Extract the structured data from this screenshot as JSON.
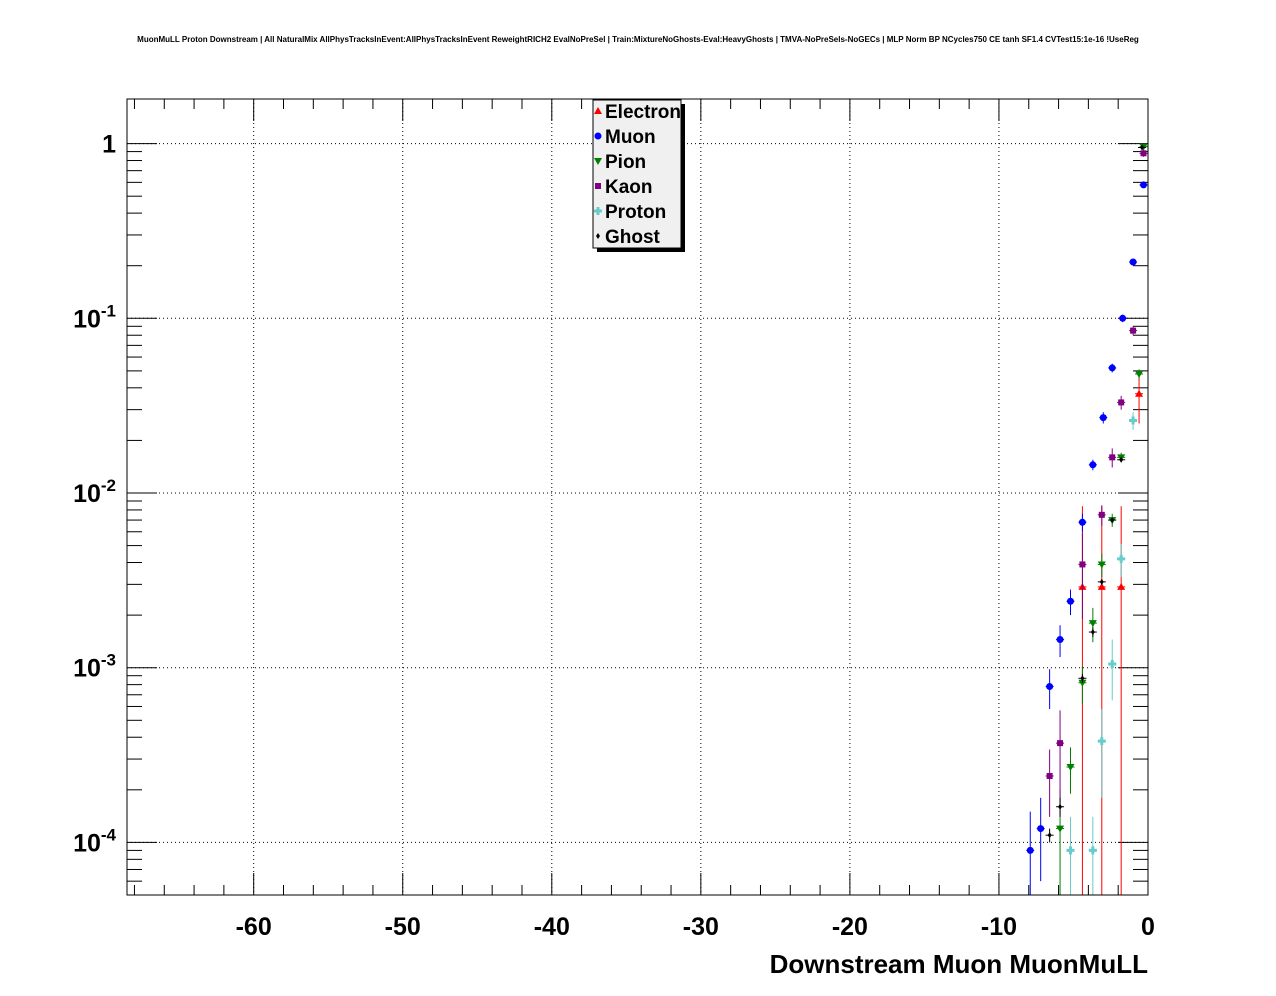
{
  "chart_data": {
    "type": "scatter",
    "title": "MuonMuLL Proton Downstream | All NaturalMix AllPhysTracksInEvent:AllPhysTracksInEvent ReweightRICH2 EvalNoPreSel | Train:MixtureNoGhosts-Eval:HeavyGhosts | TMVA-NoPreSels-NoGECs | MLP Norm BP NCycles750 CE tanh SF1.4 CVTest15:1e-16 !UseReg",
    "xlabel": "Downstream Muon MuonMuLL",
    "ylabel": "",
    "xlim": [
      -68.5,
      0
    ],
    "ylim": [
      5e-05,
      1.8
    ],
    "y_scale": "log",
    "grid": true,
    "legend_position": "top-center",
    "x_ticks": [
      {
        "value": -60,
        "label": "-60"
      },
      {
        "value": -50,
        "label": "-50"
      },
      {
        "value": -40,
        "label": "-40"
      },
      {
        "value": -30,
        "label": "-30"
      },
      {
        "value": -20,
        "label": "-20"
      },
      {
        "value": -10,
        "label": "-10"
      },
      {
        "value": 0,
        "label": "0"
      }
    ],
    "y_ticks": [
      {
        "value": 1,
        "base": "1",
        "exp": ""
      },
      {
        "value": 0.1,
        "base": "10",
        "exp": "-1"
      },
      {
        "value": 0.01,
        "base": "10",
        "exp": "-2"
      },
      {
        "value": 0.001,
        "base": "10",
        "exp": "-3"
      },
      {
        "value": 0.0001,
        "base": "10",
        "exp": "-4"
      }
    ],
    "series": [
      {
        "name": "Electron",
        "color": "#ff0000",
        "marker": "triangle-up",
        "points": [
          [
            -4.4,
            0.0029,
            0.0055
          ],
          [
            -3.1,
            0.0029,
            0.0055
          ],
          [
            -1.8,
            0.0029,
            0.0055
          ],
          [
            -0.6,
            0.037,
            0.012
          ]
        ]
      },
      {
        "name": "Muon",
        "color": "#0000ff",
        "marker": "circle",
        "points": [
          [
            -7.9,
            9e-05,
            6e-05
          ],
          [
            -7.2,
            0.00012,
            6e-05
          ],
          [
            -6.6,
            0.00078,
            0.0002
          ],
          [
            -5.9,
            0.00145,
            0.0003
          ],
          [
            -5.2,
            0.0024,
            0.0004
          ],
          [
            -4.4,
            0.0068,
            0.0008
          ],
          [
            -3.7,
            0.0145,
            0.001
          ],
          [
            -3.0,
            0.027,
            0.002
          ],
          [
            -2.4,
            0.052,
            0.003
          ],
          [
            -1.7,
            0.1,
            0.005
          ],
          [
            -1.0,
            0.21,
            0.008
          ],
          [
            -0.3,
            0.58,
            0.02
          ]
        ]
      },
      {
        "name": "Pion",
        "color": "#008000",
        "marker": "triangle-down",
        "points": [
          [
            -5.9,
            0.00012,
            8e-05
          ],
          [
            -5.2,
            0.00027,
            8e-05
          ],
          [
            -4.4,
            0.00082,
            0.0002
          ],
          [
            -3.7,
            0.0018,
            0.0004
          ],
          [
            -3.1,
            0.0039,
            0.0006
          ],
          [
            -2.4,
            0.007,
            0.0006
          ],
          [
            -1.8,
            0.016,
            0.001
          ],
          [
            -0.6,
            0.048,
            0.003
          ],
          [
            -0.3,
            0.96,
            0.04
          ]
        ]
      },
      {
        "name": "Kaon",
        "color": "#800080",
        "marker": "square",
        "points": [
          [
            -6.6,
            0.00024,
            0.0001
          ],
          [
            -5.9,
            0.00037,
            0.0002
          ],
          [
            -4.4,
            0.0039,
            0.002
          ],
          [
            -3.1,
            0.0075,
            0.001
          ],
          [
            -2.4,
            0.016,
            0.002
          ],
          [
            -1.8,
            0.033,
            0.003
          ],
          [
            -1.0,
            0.085,
            0.005
          ],
          [
            -0.3,
            0.88,
            0.04
          ]
        ]
      },
      {
        "name": "Proton",
        "color": "#66cccc",
        "marker": "cross",
        "points": [
          [
            -5.2,
            9e-05,
            5e-05
          ],
          [
            -3.7,
            9e-05,
            5e-05
          ],
          [
            -3.1,
            0.00038,
            0.0002
          ],
          [
            -2.4,
            0.00105,
            0.0004
          ],
          [
            -1.8,
            0.0042,
            0.0009
          ],
          [
            -1.0,
            0.026,
            0.003
          ]
        ]
      },
      {
        "name": "Ghost",
        "color": "#000000",
        "marker": "diamond",
        "points": [
          [
            -6.6,
            0.00011,
            1e-05
          ],
          [
            -5.9,
            0.00016,
            2e-05
          ],
          [
            -4.4,
            0.00087,
            5e-05
          ],
          [
            -3.7,
            0.0016,
            0.0001
          ],
          [
            -3.1,
            0.0031,
            0.0001
          ],
          [
            -2.4,
            0.007,
            0.0002
          ],
          [
            -1.8,
            0.0155,
            0.0004
          ],
          [
            -0.4,
            0.95,
            0.02
          ]
        ]
      }
    ]
  }
}
